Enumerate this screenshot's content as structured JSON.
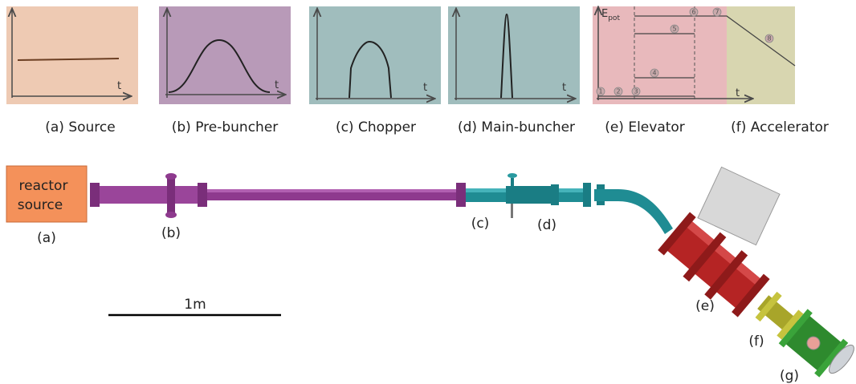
{
  "plots": [
    {
      "caption": "(a) Source",
      "time_axis": "t"
    },
    {
      "caption": "(b) Pre-buncher",
      "time_axis": "t"
    },
    {
      "caption": "(c) Chopper",
      "time_axis": "t"
    },
    {
      "caption": "(d) Main-buncher",
      "time_axis": "t"
    },
    {
      "caption": "(e) Elevator"
    },
    {
      "caption": "(f) Accelerator"
    }
  ],
  "energy_plot": {
    "time_axis": "t",
    "energy_axis": {
      "main": "E",
      "sub": "pot"
    },
    "markers": [
      "1",
      "2",
      "3",
      "4",
      "5",
      "6",
      "7",
      "8"
    ]
  },
  "beamline": {
    "source_box": [
      "reactor",
      "source"
    ],
    "labels": [
      "(a)",
      "(b)",
      "(c)",
      "(d)",
      "(e)",
      "(f)",
      "(g)"
    ],
    "scale_bar": "1m"
  }
}
